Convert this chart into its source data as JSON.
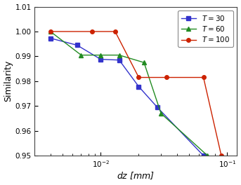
{
  "xlabel": "$dz$ [mm]",
  "ylabel": "Similarity",
  "xlim": [
    0.003,
    0.12
  ],
  "ylim": [
    0.95,
    1.01
  ],
  "yticks": [
    0.95,
    0.96,
    0.97,
    0.98,
    0.99,
    1.0,
    1.01
  ],
  "series": [
    {
      "label": "$T = 30$",
      "color": "#3333cc",
      "marker": "s",
      "markersize": 4,
      "x": [
        0.004,
        0.0065,
        0.01,
        0.014,
        0.02,
        0.028,
        0.065
      ],
      "y": [
        0.9973,
        0.9945,
        0.9888,
        0.9885,
        0.9778,
        0.9695,
        0.95
      ]
    },
    {
      "label": "$T = 60$",
      "color": "#228B22",
      "marker": "^",
      "markersize": 4,
      "x": [
        0.004,
        0.007,
        0.01,
        0.014,
        0.022,
        0.03,
        0.07
      ],
      "y": [
        1.0,
        0.9905,
        0.9905,
        0.9905,
        0.9875,
        0.967,
        0.95
      ]
    },
    {
      "label": "$T = 100$",
      "color": "#cc2200",
      "marker": "o",
      "markersize": 4,
      "x": [
        0.004,
        0.0085,
        0.013,
        0.02,
        0.033,
        0.065,
        0.09
      ],
      "y": [
        1.0,
        1.0,
        1.0,
        0.9815,
        0.9815,
        0.9815,
        0.95
      ]
    }
  ],
  "background_color": "#ffffff",
  "legend_loc": "upper right",
  "linewidth": 1.0
}
